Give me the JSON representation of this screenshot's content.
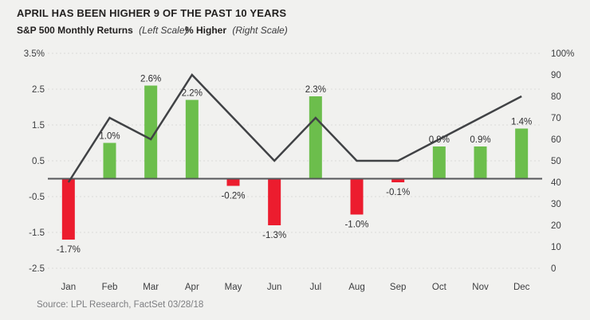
{
  "colors": {
    "background": "#F1F1EF",
    "bar_positive": "#6CBE4C",
    "bar_negative": "#EC1C2E",
    "line": "#404245",
    "zero_line": "#55565A",
    "gridline": "#DBDBD9",
    "axis_text": "#3C3D3F",
    "value_label_text": "#2E2E30"
  },
  "chart_data": {
    "type": "combo bar+line",
    "title": "APRIL HAS BEEN HIGHER 9 OF THE PAST 10 YEARS",
    "legend": [
      {
        "name": "S&P 500 Monthly Returns",
        "scale_note": "(Left Scale)",
        "series": "bars"
      },
      {
        "name": "% Higher",
        "scale_note": "(Right Scale)",
        "series": "line"
      }
    ],
    "legend_position": "top-left",
    "source": "Source: LPL Research, FactSet 03/28/18",
    "categories": [
      "Jan",
      "Feb",
      "Mar",
      "Apr",
      "May",
      "Jun",
      "Jul",
      "Aug",
      "Sep",
      "Oct",
      "Nov",
      "Dec"
    ],
    "series": [
      {
        "name": "S&P 500 Monthly Returns",
        "type": "bar",
        "axis": "left",
        "values": [
          -1.7,
          1.0,
          2.6,
          2.2,
          -0.2,
          -1.3,
          2.3,
          -1.0,
          -0.1,
          0.9,
          0.9,
          1.4
        ],
        "value_labels": [
          "-1.7%",
          "1.0%",
          "2.6%",
          "2.2%",
          "-0.2%",
          "-1.3%",
          "2.3%",
          "-1.0%",
          "-0.1%",
          "0.9%",
          "0.9%",
          "1.4%"
        ]
      },
      {
        "name": "% Higher",
        "type": "line",
        "axis": "right",
        "values": [
          40,
          70,
          60,
          90,
          70,
          50,
          70,
          50,
          50,
          60,
          70,
          80
        ]
      }
    ],
    "left_axis": {
      "min": -2.5,
      "max": 3.5,
      "tick_values": [
        3.5,
        2.5,
        1.5,
        0.5,
        -0.5,
        -1.5,
        -2.5
      ],
      "tick_labels": [
        "3.5%",
        "2.5",
        "1.5",
        "0.5",
        "-0.5",
        "-1.5",
        "-2.5"
      ]
    },
    "right_axis": {
      "min": 0,
      "max": 100,
      "tick_values": [
        100,
        90,
        80,
        70,
        60,
        50,
        40,
        30,
        20,
        10,
        0
      ],
      "tick_labels": [
        "100%",
        "90",
        "80",
        "70",
        "60",
        "50",
        "40",
        "30",
        "20",
        "10",
        "0"
      ]
    },
    "grid": "horizontal dashed lines, solid zero line"
  }
}
